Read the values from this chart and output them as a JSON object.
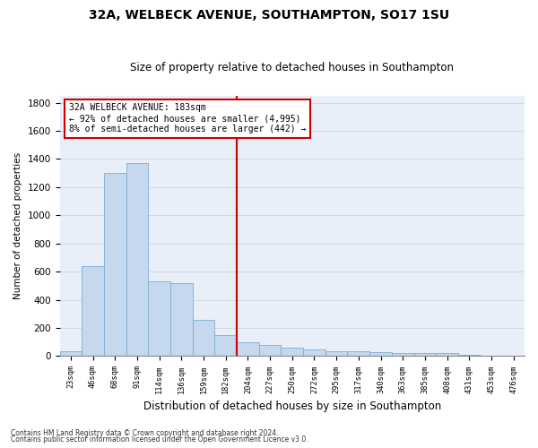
{
  "title": "32A, WELBECK AVENUE, SOUTHAMPTON, SO17 1SU",
  "subtitle": "Size of property relative to detached houses in Southampton",
  "xlabel": "Distribution of detached houses by size in Southampton",
  "ylabel": "Number of detached properties",
  "footer_line1": "Contains HM Land Registry data © Crown copyright and database right 2024.",
  "footer_line2": "Contains public sector information licensed under the Open Government Licence v3.0.",
  "categories": [
    "23sqm",
    "46sqm",
    "68sqm",
    "91sqm",
    "114sqm",
    "136sqm",
    "159sqm",
    "182sqm",
    "204sqm",
    "227sqm",
    "250sqm",
    "272sqm",
    "295sqm",
    "317sqm",
    "340sqm",
    "363sqm",
    "385sqm",
    "408sqm",
    "431sqm",
    "453sqm",
    "476sqm"
  ],
  "values": [
    35,
    640,
    1300,
    1370,
    530,
    520,
    260,
    150,
    100,
    80,
    60,
    50,
    35,
    35,
    28,
    20,
    20,
    20,
    8,
    3,
    3
  ],
  "bar_color": "#c5d8ee",
  "bar_edge_color": "#7aaed4",
  "vline_color": "#cc0000",
  "annotation_line1": "32A WELBECK AVENUE: 183sqm",
  "annotation_line2": "← 92% of detached houses are smaller (4,995)",
  "annotation_line3": "8% of semi-detached houses are larger (442) →",
  "annotation_box_color": "#cc0000",
  "ylim": [
    0,
    1850
  ],
  "yticks": [
    0,
    200,
    400,
    600,
    800,
    1000,
    1200,
    1400,
    1600,
    1800
  ],
  "grid_color": "#d0d8e4",
  "bg_color": "#e8eff8",
  "title_fontsize": 10,
  "subtitle_fontsize": 8.5,
  "vline_bin_index": 7
}
